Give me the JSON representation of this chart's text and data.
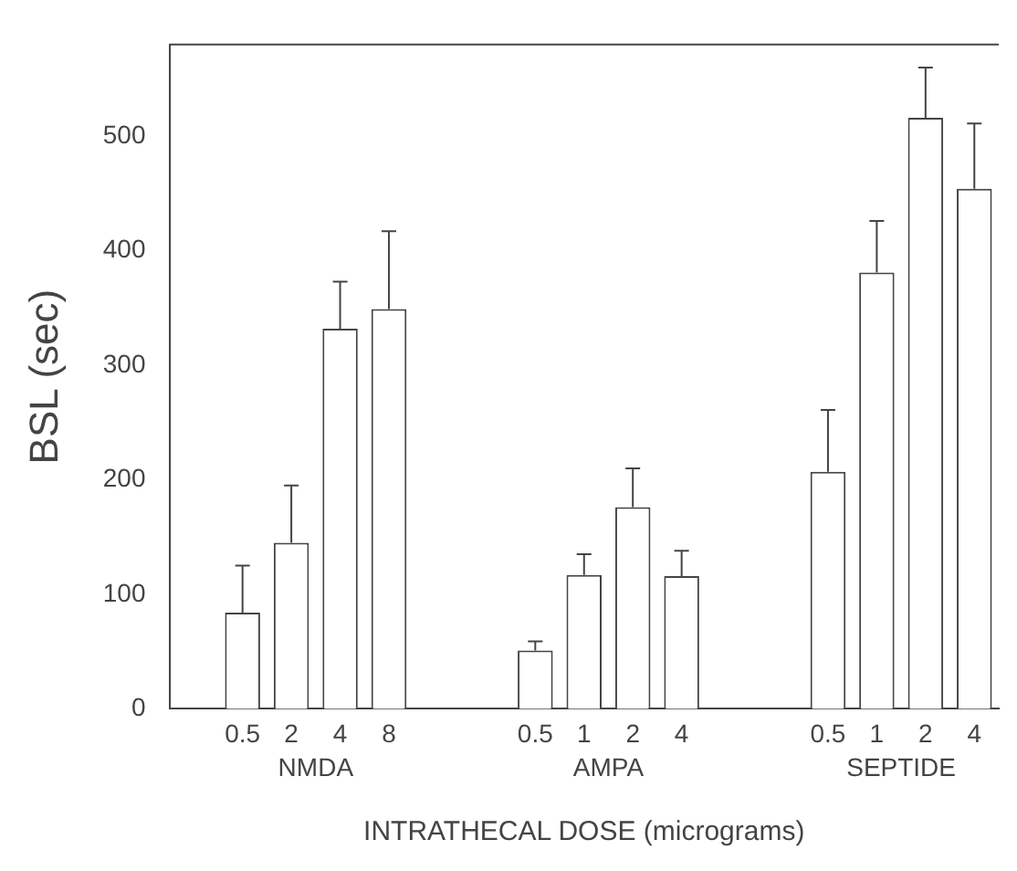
{
  "chart_data": {
    "type": "bar",
    "ylabel": "BSL (sec)",
    "xlabel": "INTRATHECAL DOSE (micrograms)",
    "categories": [
      null,
      "0.5",
      "2",
      "4",
      "8",
      null,
      null,
      "0.5",
      "1",
      "2",
      "4",
      null,
      null,
      "0.5",
      "1",
      "2",
      "4"
    ],
    "values": [
      null,
      84,
      145,
      332,
      349,
      null,
      null,
      51,
      117,
      176,
      116,
      null,
      null,
      207,
      381,
      516,
      454
    ],
    "errors": [
      null,
      [
        84,
        125
      ],
      [
        145,
        195
      ],
      [
        332,
        373
      ],
      [
        349,
        417
      ],
      null,
      null,
      [
        51,
        59
      ],
      [
        117,
        135
      ],
      [
        176,
        210
      ],
      [
        116,
        138
      ],
      null,
      null,
      [
        207,
        261
      ],
      [
        381,
        426
      ],
      [
        516,
        560
      ],
      [
        454,
        511
      ]
    ],
    "color": "#ffffff",
    "annotations": [
      "NMDA",
      "AMPA",
      "SEPTIDE"
    ],
    "ylim": [
      0,
      580
    ],
    "yticks": [
      0,
      100,
      200,
      300,
      400,
      500
    ],
    "grid": false,
    "legend": false
  }
}
